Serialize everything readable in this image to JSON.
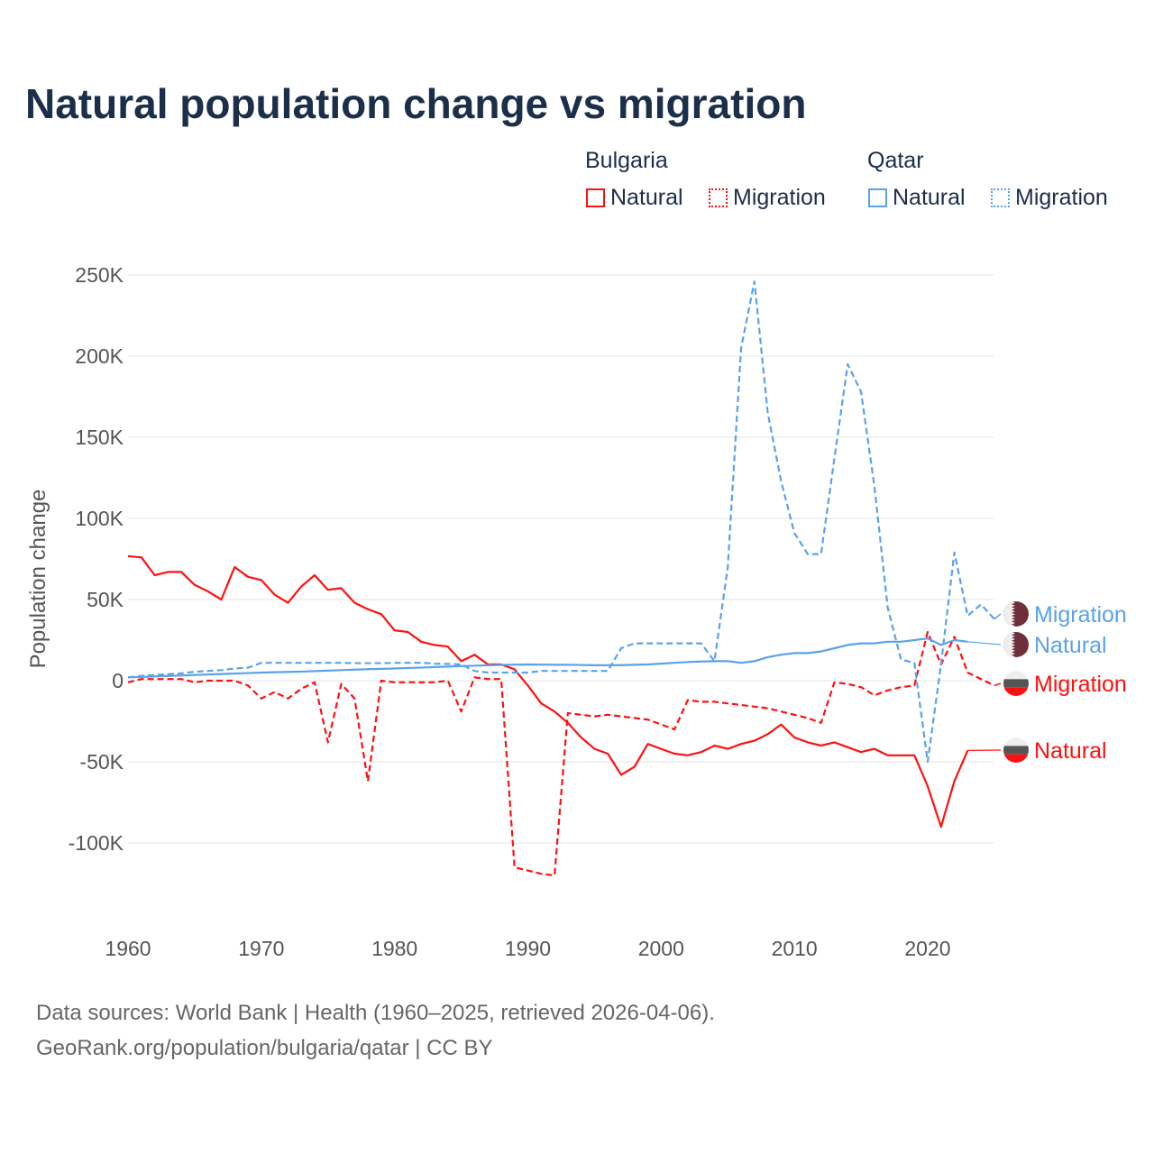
{
  "title": "Natural population change vs migration",
  "legend": {
    "groups": [
      {
        "name": "Bulgaria",
        "color": "#ff1010",
        "items": [
          "Natural",
          "Migration"
        ]
      },
      {
        "name": "Qatar",
        "color": "#5aa2ea",
        "items": [
          "Natural",
          "Migration"
        ]
      }
    ]
  },
  "source_lines": [
    "Data sources: World Bank | Health (1960–2025, retrieved 2026-04-06).",
    "GeoRank.org/population/bulgaria/qatar | CC BY"
  ],
  "chart_data": {
    "type": "line",
    "title": "Natural population change vs migration",
    "xlabel": "",
    "ylabel": "Population change",
    "xlim": [
      1960,
      2025
    ],
    "ylim": [
      -140000,
      250000
    ],
    "x_ticks": [
      1960,
      1970,
      1980,
      1990,
      2000,
      2010,
      2020
    ],
    "x_tick_labels": [
      "1960",
      "1970",
      "1980",
      "1990",
      "2000",
      "2010",
      "2020"
    ],
    "y_ticks": [
      -100000,
      -50000,
      0,
      50000,
      100000,
      150000,
      200000,
      250000
    ],
    "y_tick_labels": [
      "-100K",
      "-50K",
      "0",
      "50K",
      "100K",
      "150K",
      "200K",
      "250K"
    ],
    "grid": true,
    "legend_position": "top-right",
    "series": [
      {
        "name": "Bulgaria Natural",
        "label": "Natural",
        "color": "#ff1010",
        "dash": false,
        "start": 1960,
        "values_k": [
          76.7,
          76,
          65,
          67,
          67,
          59,
          55,
          50,
          70,
          64,
          62,
          53,
          48,
          58,
          65,
          56,
          57,
          48,
          44,
          41,
          31,
          30,
          24,
          22,
          21,
          12,
          16,
          10,
          10,
          7,
          -3,
          -14,
          -19,
          -26,
          -35,
          -42,
          -45,
          -58,
          -53,
          -39,
          -42,
          -45,
          -46,
          -44,
          -40,
          -42,
          -39,
          -37,
          -33,
          -27,
          -35,
          -38,
          -40,
          -38,
          -41,
          -44,
          -42,
          -46,
          -46,
          -46,
          -65,
          -90,
          -62,
          -43
        ]
      },
      {
        "name": "Bulgaria Migration",
        "label": "Migration",
        "color": "#ff1010",
        "dash": true,
        "start": 1960,
        "values_k": [
          -1,
          1,
          1,
          1,
          1,
          -1,
          0,
          0,
          0,
          -3,
          -11,
          -7,
          -11,
          -5,
          -1,
          -38,
          -2,
          -11,
          -62,
          0,
          -1,
          -1,
          -1,
          -1,
          0,
          -19,
          2,
          1,
          1,
          -115,
          -117,
          -119,
          -120,
          -20,
          -21,
          -22,
          -21,
          -22,
          -23,
          -24,
          -27,
          -30,
          -12,
          -13,
          -13,
          -14,
          -15,
          -16,
          -17,
          -19,
          -21,
          -23,
          -26,
          -1,
          -2,
          -4,
          -9,
          -6,
          -4,
          -3,
          30,
          10,
          27,
          5,
          1,
          -3
        ]
      },
      {
        "name": "Qatar Natural",
        "label": "Natural",
        "color": "#5aa2ea",
        "dash": false,
        "start": 1960,
        "values_k": [
          2,
          2.3,
          2.6,
          2.9,
          3.2,
          3.5,
          3.8,
          4.1,
          4.4,
          4.7,
          5,
          5.2,
          5.4,
          5.6,
          5.9,
          6.2,
          6.5,
          6.8,
          7.1,
          7.3,
          7.5,
          7.8,
          8.1,
          8.4,
          8.7,
          9,
          9.2,
          9.5,
          9.7,
          9.9,
          10,
          9.9,
          9.8,
          9.8,
          9.7,
          9.5,
          9.5,
          9.6,
          9.8,
          10,
          10.5,
          11,
          11.5,
          11.8,
          12,
          12,
          11,
          12,
          14.5,
          16,
          17,
          17,
          18,
          20,
          22,
          23,
          23,
          24,
          24,
          25,
          26,
          22,
          25,
          24
        ]
      },
      {
        "name": "Qatar Migration",
        "label": "Migration",
        "color": "#5aa2ea",
        "dash": true,
        "start": 1960,
        "values_k": [
          2,
          3,
          3.5,
          4,
          4.5,
          5.5,
          6,
          6.5,
          7.5,
          8,
          11,
          11,
          11,
          11,
          11,
          11,
          11,
          10.8,
          10.8,
          10.8,
          11,
          11,
          11,
          10.5,
          10.3,
          10,
          6,
          5,
          5,
          5,
          5,
          6,
          6,
          6,
          6,
          6,
          6,
          20,
          23,
          23,
          23,
          23,
          23,
          23,
          12,
          70,
          205,
          246,
          165,
          123,
          91,
          78,
          78,
          137,
          195,
          178,
          120,
          45,
          13,
          11,
          -50,
          10,
          79,
          40,
          47,
          38
        ]
      }
    ]
  }
}
